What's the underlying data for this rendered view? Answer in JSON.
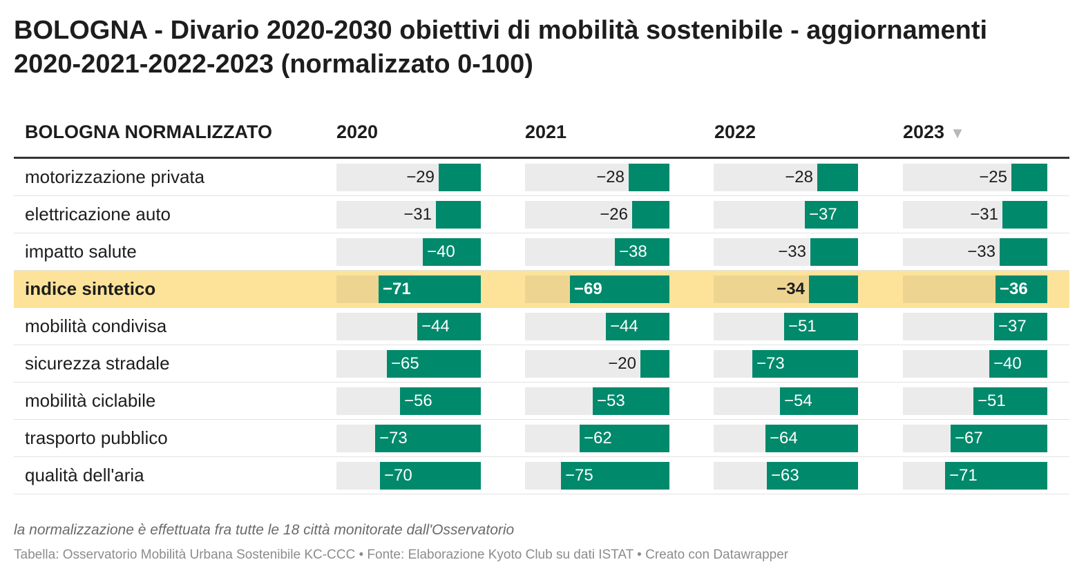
{
  "title": "BOLOGNA - Divario 2020-2030 obiettivi di mobilità sostenibile - aggiornamenti 2020-2021-2022-2023 (normalizzato 0-100)",
  "table": {
    "row_header": "BOLOGNA NORMALIZZATO",
    "columns": [
      "2020",
      "2021",
      "2022",
      "2023"
    ],
    "sorted_column": "2023",
    "sort_icon": "sort-descending-icon"
  },
  "colors": {
    "bar": "#00896b",
    "track": "#ebebeb",
    "highlight": "#fde39a"
  },
  "chart_data": {
    "type": "table",
    "title": "BOLOGNA - Divario 2020-2030 obiettivi di mobilità sostenibile - aggiornamenti 2020-2021-2022-2023 (normalizzato 0-100)",
    "scale": [
      0,
      100
    ],
    "columns": [
      "2020",
      "2021",
      "2022",
      "2023"
    ],
    "rows": [
      {
        "label": "motorizzazione privata",
        "values": [
          -29,
          -28,
          -28,
          -25
        ],
        "highlight": false
      },
      {
        "label": "elettricazione auto",
        "values": [
          -31,
          -26,
          -37,
          -31
        ],
        "highlight": false
      },
      {
        "label": "impatto salute",
        "values": [
          -40,
          -38,
          -33,
          -33
        ],
        "highlight": false
      },
      {
        "label": "indice sintetico",
        "values": [
          -71,
          -69,
          -34,
          -36
        ],
        "highlight": true
      },
      {
        "label": "mobilità condivisa",
        "values": [
          -44,
          -44,
          -51,
          -37
        ],
        "highlight": false
      },
      {
        "label": "sicurezza stradale",
        "values": [
          -65,
          -20,
          -73,
          -40
        ],
        "highlight": false
      },
      {
        "label": "mobilità ciclabile",
        "values": [
          -56,
          -53,
          -54,
          -51
        ],
        "highlight": false
      },
      {
        "label": "trasporto pubblico",
        "values": [
          -73,
          -62,
          -64,
          -67
        ],
        "highlight": false
      },
      {
        "label": "qualità dell'aria",
        "values": [
          -70,
          -75,
          -63,
          -71
        ],
        "highlight": false
      }
    ]
  },
  "note": "la normalizzazione è effettuata fra tutte le 18 città monitorate dall'Osservatorio",
  "source": "Tabella: Osservatorio Mobilità Urbana Sostenibile KC-CCC • Fonte: Elaborazione Kyoto Club su dati ISTAT • Creato con Datawrapper"
}
